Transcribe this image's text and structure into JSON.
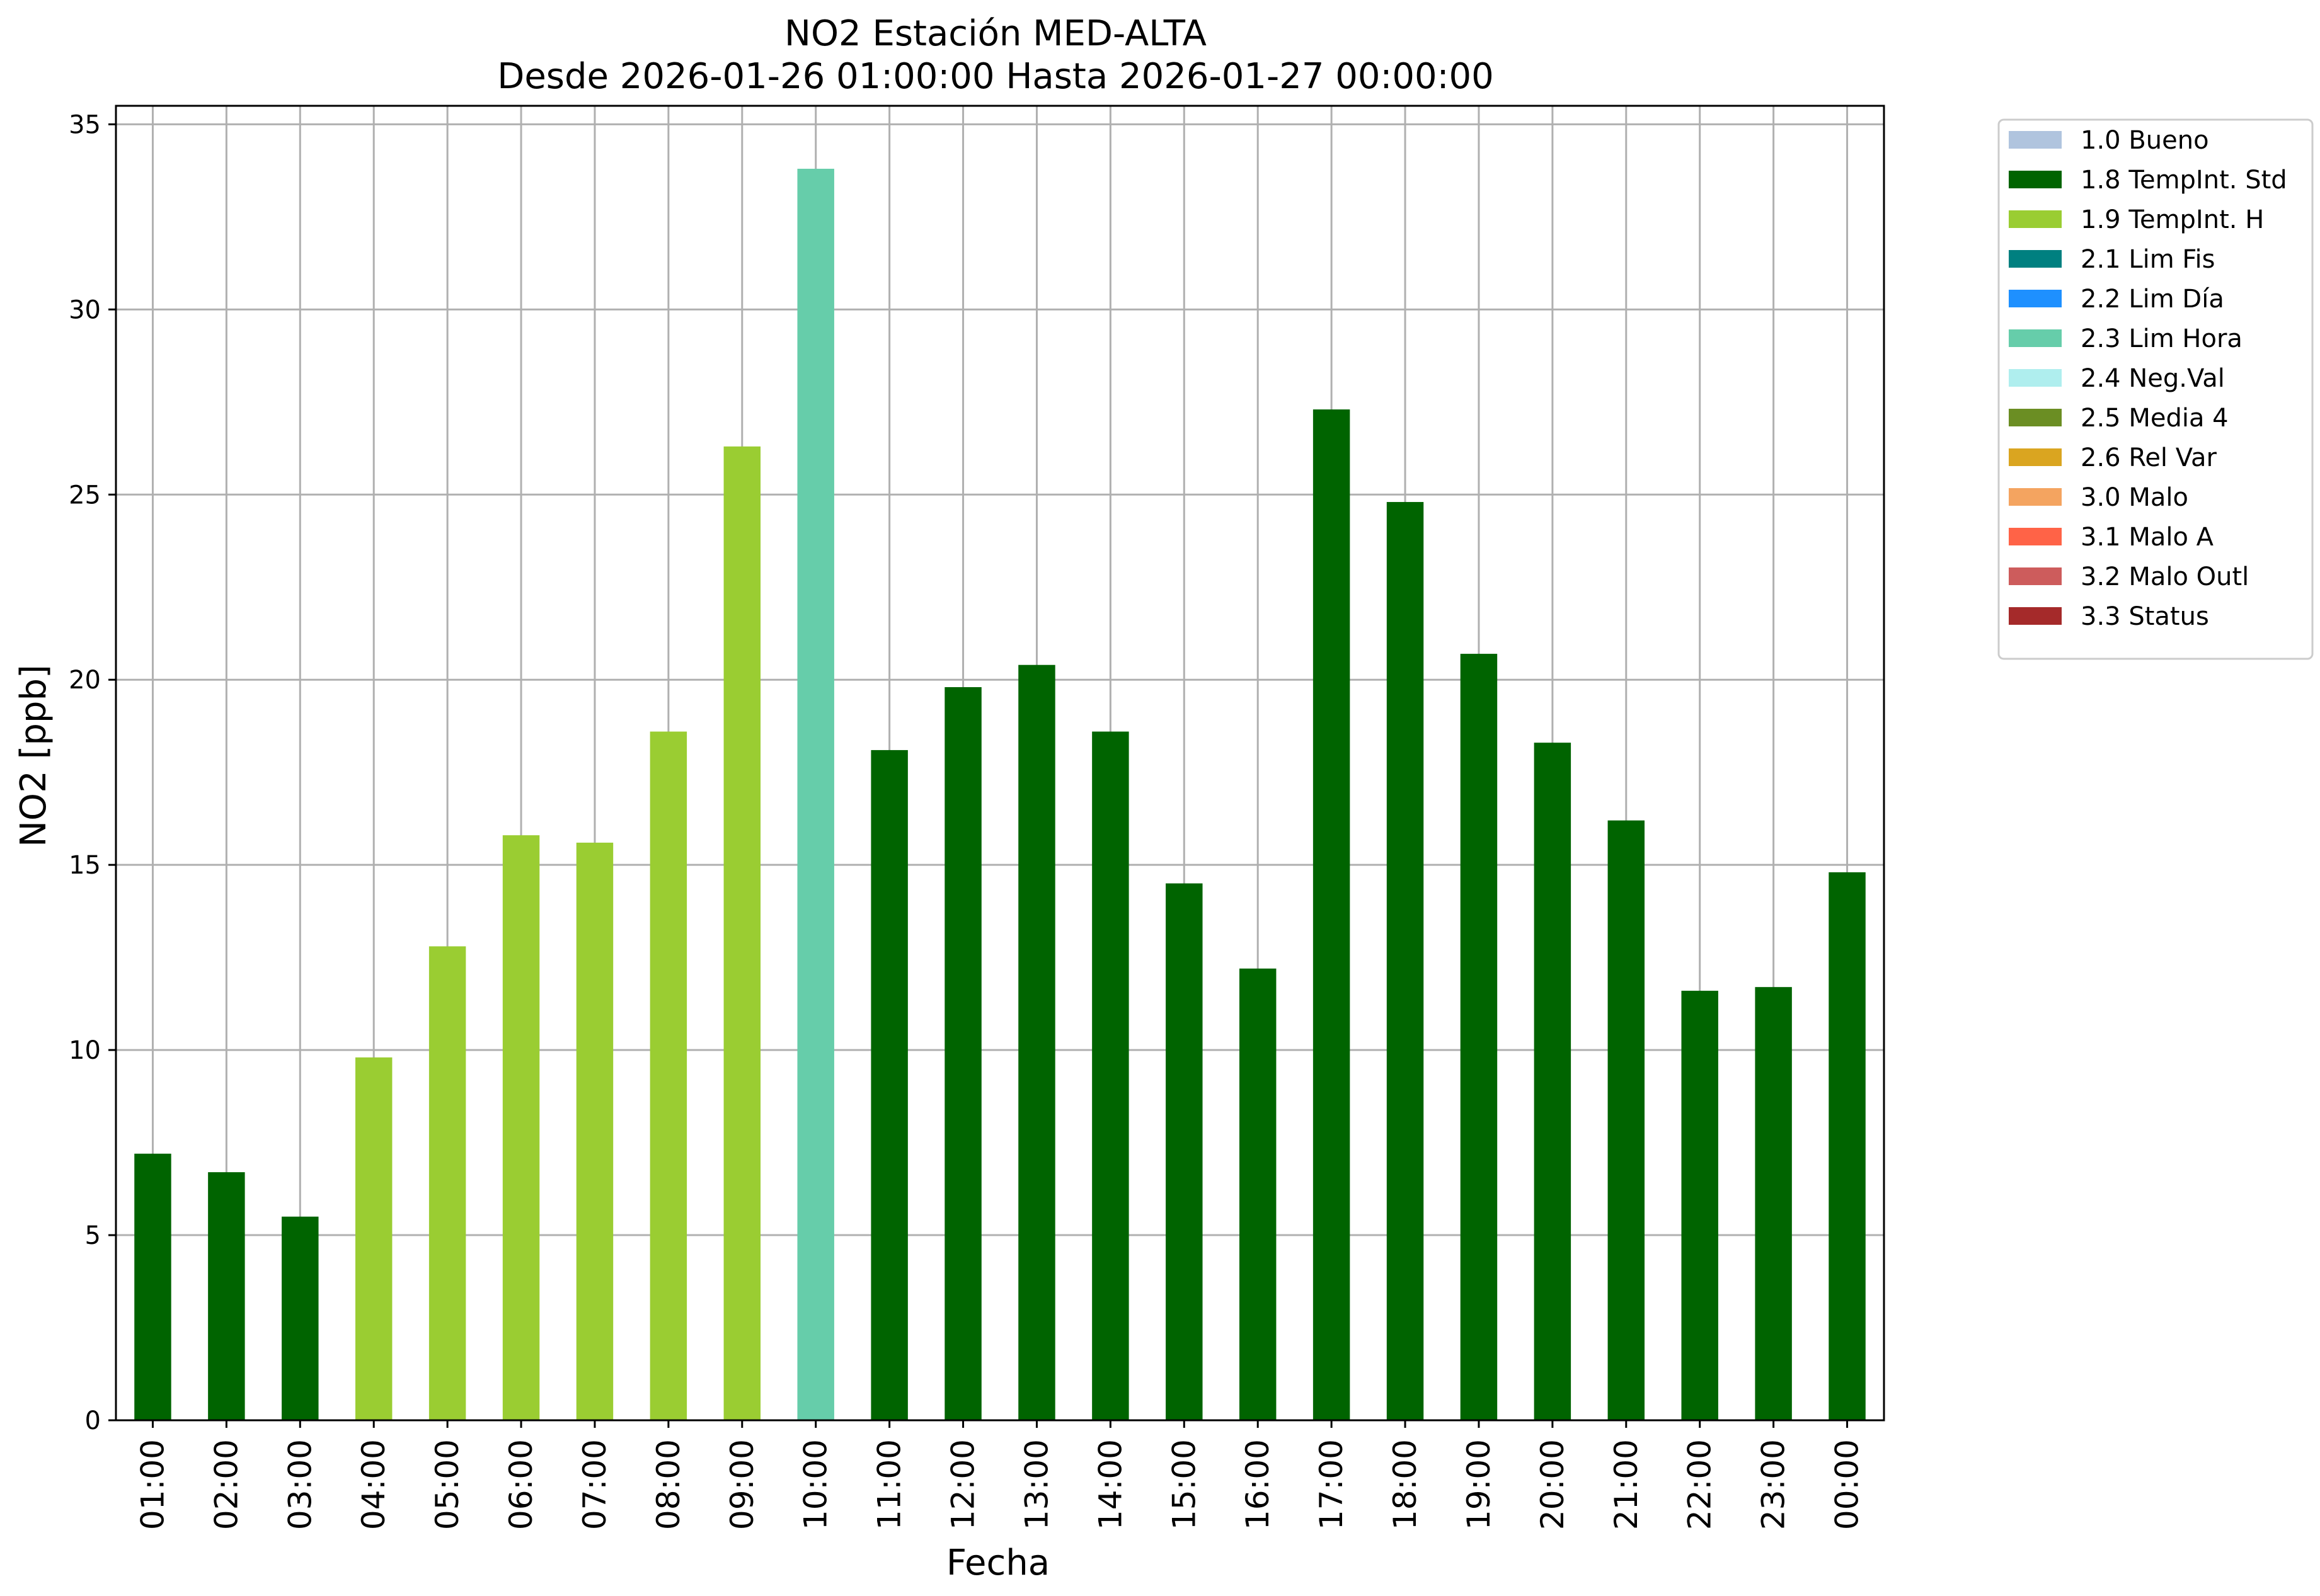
{
  "chart_data": {
    "type": "bar",
    "title_line1": "NO2 Estación MED-ALTA",
    "title_line2": "Desde 2026-01-26 01:00:00 Hasta 2026-01-27 00:00:00",
    "xlabel": "Fecha",
    "ylabel": "NO2 [ppb]",
    "ylim": [
      0,
      35.5
    ],
    "yticks": [
      0,
      5,
      10,
      15,
      20,
      25,
      30,
      35
    ],
    "grid": true,
    "legend_position": "outside-top-right",
    "categories": [
      "01:00",
      "02:00",
      "03:00",
      "04:00",
      "05:00",
      "06:00",
      "07:00",
      "08:00",
      "09:00",
      "10:00",
      "11:00",
      "12:00",
      "13:00",
      "14:00",
      "15:00",
      "16:00",
      "17:00",
      "18:00",
      "19:00",
      "20:00",
      "21:00",
      "22:00",
      "23:00",
      "00:00"
    ],
    "values": [
      7.2,
      6.7,
      5.5,
      9.8,
      12.8,
      15.8,
      15.6,
      18.6,
      26.3,
      33.8,
      18.1,
      19.8,
      20.4,
      18.6,
      14.5,
      12.2,
      27.3,
      24.8,
      20.7,
      18.3,
      16.2,
      11.6,
      11.7,
      14.8
    ],
    "flags": [
      "1.8",
      "1.8",
      "1.8",
      "1.9",
      "1.9",
      "1.9",
      "1.9",
      "1.9",
      "1.9",
      "2.3",
      "1.8",
      "1.8",
      "1.8",
      "1.8",
      "1.8",
      "1.8",
      "1.8",
      "1.8",
      "1.8",
      "1.8",
      "1.8",
      "1.8",
      "1.8",
      "1.8"
    ],
    "legend": [
      {
        "code": "1.0",
        "label": "1.0 Bueno",
        "color": "#b0c4de"
      },
      {
        "code": "1.8",
        "label": "1.8 TempInt. Std",
        "color": "#006400"
      },
      {
        "code": "1.9",
        "label": "1.9 TempInt. H",
        "color": "#9acd32"
      },
      {
        "code": "2.1",
        "label": "2.1 Lim Fis",
        "color": "#008080"
      },
      {
        "code": "2.2",
        "label": "2.2 Lim Día",
        "color": "#1e90ff"
      },
      {
        "code": "2.3",
        "label": "2.3 Lim Hora",
        "color": "#66cdaa"
      },
      {
        "code": "2.4",
        "label": "2.4 Neg.Val",
        "color": "#afeeee"
      },
      {
        "code": "2.5",
        "label": "2.5 Media 4",
        "color": "#6b8e23"
      },
      {
        "code": "2.6",
        "label": "2.6 Rel Var",
        "color": "#daa520"
      },
      {
        "code": "3.0",
        "label": "3.0 Malo",
        "color": "#f4a460"
      },
      {
        "code": "3.1",
        "label": "3.1 Malo A",
        "color": "#ff6347"
      },
      {
        "code": "3.2",
        "label": "3.2 Malo Outl",
        "color": "#cd5c5c"
      },
      {
        "code": "3.3",
        "label": "3.3 Status",
        "color": "#a52a2a"
      }
    ]
  }
}
